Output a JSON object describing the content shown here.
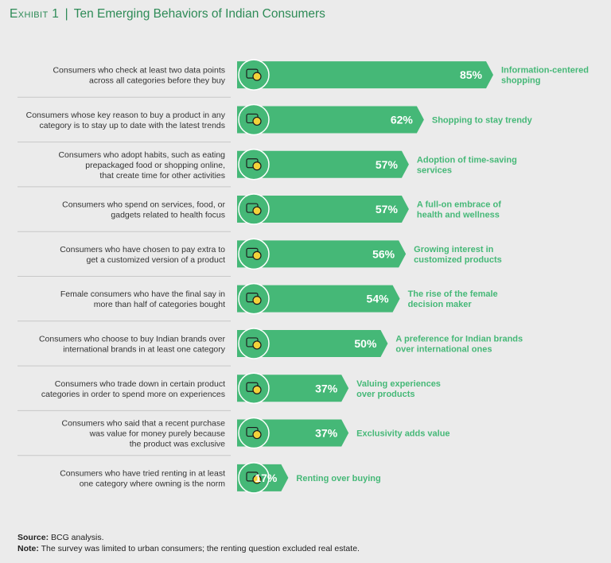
{
  "title": {
    "exhibit": "Exhibit 1",
    "separator": "|",
    "text": "Ten Emerging Behaviors of Indian Consumers"
  },
  "colors": {
    "bar": "#45b877",
    "bar_dark": "#2c9a5e",
    "accent_text": "#45b877",
    "divider": "#c8c8c8",
    "icon": "#f3d23a"
  },
  "chart_data": {
    "type": "bar",
    "orientation": "horizontal",
    "unit": "%",
    "xlim": [
      0,
      100
    ],
    "grid": false,
    "rows": [
      {
        "description": [
          "Consumers who check at least two data points",
          "across all categories before they buy"
        ],
        "value": 85,
        "label": "85%",
        "behavior": [
          "Information-centered",
          "shopping"
        ],
        "icon": "magnifier-document-icon"
      },
      {
        "description": [
          "Consumers whose key reason to buy a product in any",
          "category is to stay up to date with the latest trends"
        ],
        "value": 62,
        "label": "62%",
        "behavior": [
          "Shopping to stay trendy"
        ],
        "icon": "clothing-icon"
      },
      {
        "description": [
          "Consumers who adopt habits, such as eating",
          "prepackaged food or shopping online,",
          "that create time for other activities"
        ],
        "value": 57,
        "label": "57%",
        "behavior": [
          "Adoption of time-saving",
          "services"
        ],
        "icon": "time-saving-icon"
      },
      {
        "description": [
          "Consumers who spend on services, food, or",
          "gadgets related to health focus"
        ],
        "value": 57,
        "label": "57%",
        "behavior": [
          "A full-on embrace of",
          "health and wellness"
        ],
        "icon": "heart-hand-icon"
      },
      {
        "description": [
          "Consumers who have chosen to pay extra to",
          "get a customized version of a product"
        ],
        "value": 56,
        "label": "56%",
        "behavior": [
          "Growing interest in",
          "customized products"
        ],
        "icon": "customize-arrow-icon"
      },
      {
        "description": [
          "Female consumers who have the final say in",
          "more than half of categories bought"
        ],
        "value": 54,
        "label": "54%",
        "behavior": [
          "The rise of the female",
          "decision maker"
        ],
        "icon": "female-shopper-icon"
      },
      {
        "description": [
          "Consumers who choose to buy Indian brands over",
          "international brands in at least one category"
        ],
        "value": 50,
        "label": "50%",
        "behavior": [
          "A preference for Indian brands",
          "over international ones"
        ],
        "icon": "india-map-icon"
      },
      {
        "description": [
          "Consumers who trade down in certain product",
          "categories in order to spend more on experiences"
        ],
        "value": 37,
        "label": "37%",
        "behavior": [
          "Valuing experiences",
          "over products"
        ],
        "icon": "experience-head-icon"
      },
      {
        "description": [
          "Consumers who said that a recent purchase",
          "was value for money purely because",
          "the product was exclusive"
        ],
        "value": 37,
        "label": "37%",
        "behavior": [
          "Exclusivity adds value"
        ],
        "icon": "diamond-hand-icon"
      },
      {
        "description": [
          "Consumers who have tried renting in at least",
          "one category where owning is the norm"
        ],
        "value": 17,
        "label": "17%",
        "behavior": [
          "Renting over buying"
        ],
        "icon": "renting-cycle-icon"
      }
    ]
  },
  "footer": {
    "source_label": "Source:",
    "source_text": " BCG analysis.",
    "note_label": "Note:",
    "note_text": " The survey was limited to urban consumers; the renting question excluded real estate."
  }
}
